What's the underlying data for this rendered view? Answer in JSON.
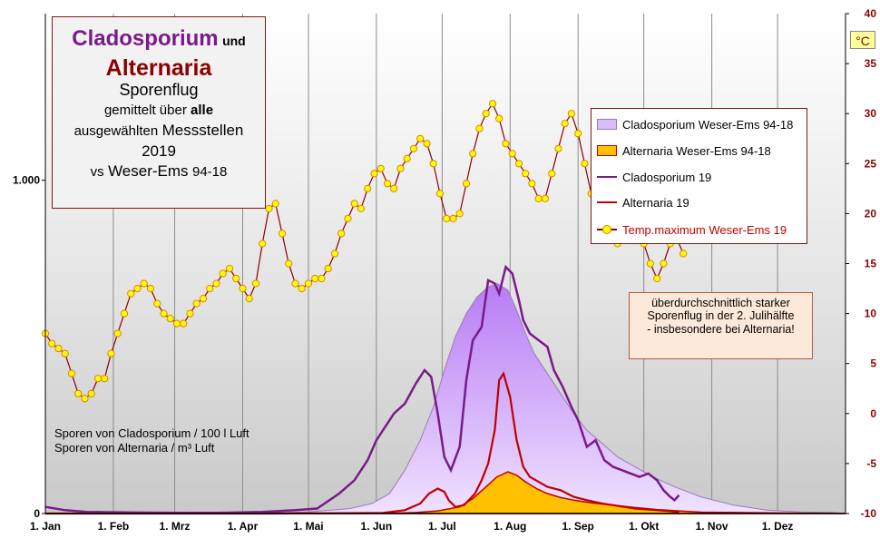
{
  "title_block": {
    "line1_a": "Cladosporium",
    "line1_b": "und",
    "line2": "Alternaria",
    "line3": "Sporenflug",
    "line4_a": "gemittelt über",
    "line4_b": "alle",
    "line5_a": "ausgewählten",
    "line5_b": "Messstellen",
    "line6": "2019",
    "line7_a": "vs",
    "line7_b": "Weser-Ems",
    "line7_c": "94-18"
  },
  "units_note": {
    "line1": "Sporen von Cladosporium / 100 l Luft",
    "line2": "Sporen von Alternaria  / m³ Luft"
  },
  "annotation": {
    "line1": "überdurchschnittlich starker",
    "line2": "Sporenflug in der 2. Julihälfte",
    "line3": "- insbesondere bei Alternaria!"
  },
  "temp_unit": "°C",
  "colors": {
    "clad_avg_fill": "#c89cf8",
    "clad_avg_line": "#9a7ab8",
    "alt_avg_fill": "#ffc000",
    "alt_avg_line": "#c00000",
    "clad_2019": "#7a1a8a",
    "alt_2019": "#c00000",
    "temp_line": "#8b0000",
    "temp_marker": "#ffff00"
  },
  "chart_data": {
    "type": "line",
    "x_tick_labels": [
      "1. Jan",
      "1. Feb",
      "1. Mrz",
      "1. Apr",
      "1. Mai",
      "1. Jun",
      "1. Jul",
      "1. Aug",
      "1. Sep",
      "1. Okt",
      "1. Nov",
      "1. Dez"
    ],
    "x_tick_days": [
      1,
      32,
      60,
      91,
      121,
      152,
      182,
      213,
      244,
      274,
      305,
      335
    ],
    "x_range": [
      1,
      366
    ],
    "y_left": {
      "ticks": [
        "0",
        "1.000"
      ],
      "tick_values": [
        0,
        1000
      ],
      "range": [
        0,
        1500
      ]
    },
    "y_right": {
      "unit": "°C",
      "ticks": [
        -10,
        -5,
        0,
        5,
        10,
        15,
        20,
        25,
        30,
        35,
        40
      ],
      "range": [
        -10,
        40
      ]
    },
    "grid": "vertical lines at month starts",
    "legend_position": "right",
    "series": [
      {
        "name": "Cladosporium Weser-Ems 94-18",
        "kind": "area",
        "axis": "left",
        "x": [
          1,
          90,
          120,
          140,
          150,
          158,
          165,
          172,
          178,
          183,
          188,
          193,
          198,
          203,
          207,
          212,
          216,
          220,
          224,
          230,
          236,
          242,
          248,
          255,
          262,
          270,
          278,
          288,
          300,
          315,
          330,
          345,
          360,
          366
        ],
        "y": [
          0,
          1,
          4,
          15,
          30,
          60,
          130,
          220,
          320,
          430,
          530,
          600,
          650,
          680,
          690,
          670,
          610,
          540,
          480,
          420,
          360,
          300,
          250,
          210,
          170,
          140,
          110,
          80,
          50,
          25,
          10,
          5,
          3,
          0
        ]
      },
      {
        "name": "Alternaria Weser-Ems 94-18",
        "kind": "area",
        "axis": "left",
        "x": [
          1,
          140,
          160,
          170,
          180,
          190,
          196,
          202,
          207,
          212,
          216,
          220,
          225,
          230,
          236,
          242,
          250,
          260,
          270,
          280,
          290,
          300,
          366
        ],
        "y": [
          0,
          0,
          1,
          3,
          8,
          20,
          45,
          80,
          110,
          125,
          115,
          95,
          75,
          60,
          48,
          40,
          32,
          25,
          18,
          12,
          8,
          4,
          0
        ]
      },
      {
        "name": "Cladosporium 19",
        "axis": "left",
        "x": [
          1,
          10,
          20,
          40,
          60,
          80,
          100,
          115,
          125,
          135,
          142,
          148,
          152,
          157,
          160,
          165,
          170,
          174,
          177,
          180,
          183,
          186,
          190,
          193,
          196,
          200,
          203,
          206,
          208,
          211,
          214,
          217,
          219,
          222,
          226,
          230,
          233,
          237,
          241,
          244,
          248,
          252,
          256,
          260,
          264,
          268,
          272,
          276,
          280,
          283,
          286,
          288,
          290
        ],
        "y": [
          20,
          10,
          5,
          3,
          2,
          2,
          5,
          10,
          15,
          60,
          100,
          160,
          220,
          270,
          300,
          330,
          390,
          430,
          410,
          300,
          170,
          130,
          200,
          400,
          520,
          560,
          700,
          690,
          660,
          740,
          720,
          640,
          580,
          540,
          520,
          500,
          430,
          380,
          320,
          280,
          200,
          220,
          160,
          140,
          130,
          120,
          110,
          120,
          100,
          70,
          50,
          40,
          55
        ]
      },
      {
        "name": "Alternaria 19",
        "axis": "left",
        "x": [
          1,
          40,
          100,
          140,
          155,
          165,
          172,
          176,
          180,
          183,
          185,
          188,
          192,
          197,
          200,
          203,
          206,
          208,
          210,
          213,
          216,
          219,
          222,
          226,
          230,
          236,
          242,
          248,
          255,
          260,
          270,
          280,
          290
        ],
        "y": [
          0,
          0,
          0,
          1,
          2,
          10,
          30,
          60,
          75,
          65,
          40,
          20,
          25,
          60,
          100,
          150,
          250,
          400,
          420,
          350,
          220,
          140,
          110,
          95,
          80,
          70,
          50,
          40,
          30,
          25,
          15,
          10,
          5
        ]
      },
      {
        "name": "Temp.maximum Weser-Ems 19",
        "axis": "right",
        "marker": "circle",
        "x": [
          1,
          4,
          7,
          10,
          13,
          16,
          19,
          22,
          25,
          28,
          31,
          34,
          37,
          40,
          43,
          46,
          49,
          52,
          55,
          58,
          61,
          64,
          67,
          70,
          73,
          76,
          79,
          82,
          85,
          88,
          91,
          94,
          97,
          100,
          103,
          106,
          109,
          112,
          115,
          118,
          121,
          124,
          127,
          130,
          133,
          136,
          139,
          142,
          145,
          148,
          151,
          154,
          157,
          160,
          163,
          166,
          169,
          172,
          175,
          178,
          181,
          184,
          187,
          190,
          193,
          196,
          199,
          202,
          205,
          208,
          211,
          214,
          217,
          220,
          223,
          226,
          229,
          232,
          235,
          238,
          241,
          244,
          247,
          250,
          253,
          256,
          259,
          262,
          265,
          268,
          271,
          274,
          277,
          280,
          283,
          286,
          289,
          292
        ],
        "y": [
          8,
          7,
          6.5,
          6,
          4,
          2,
          1.5,
          2,
          3.5,
          3.5,
          6,
          8,
          10,
          12,
          12.5,
          13,
          12.5,
          11,
          10,
          9.5,
          9,
          9,
          10,
          11,
          11.5,
          12.5,
          13,
          14,
          14.5,
          13.5,
          12.5,
          11.5,
          13,
          17,
          20.5,
          21,
          18,
          15,
          13,
          12.5,
          13,
          13.5,
          13.5,
          14.5,
          16,
          18,
          19.5,
          21,
          20.5,
          22.5,
          24,
          24.5,
          23,
          22.5,
          24.5,
          25.5,
          26.5,
          27.5,
          27,
          25,
          22,
          19.5,
          19.5,
          20,
          23,
          26,
          28.5,
          30,
          31,
          29.5,
          27,
          26,
          25,
          24,
          23,
          21.5,
          21.5,
          24,
          26.5,
          29,
          30,
          28,
          25,
          22,
          19.5,
          18.5,
          17.5,
          17,
          17.5,
          19,
          18.5,
          17,
          15,
          13.5,
          15,
          17,
          17.5,
          16
        ]
      }
    ]
  }
}
